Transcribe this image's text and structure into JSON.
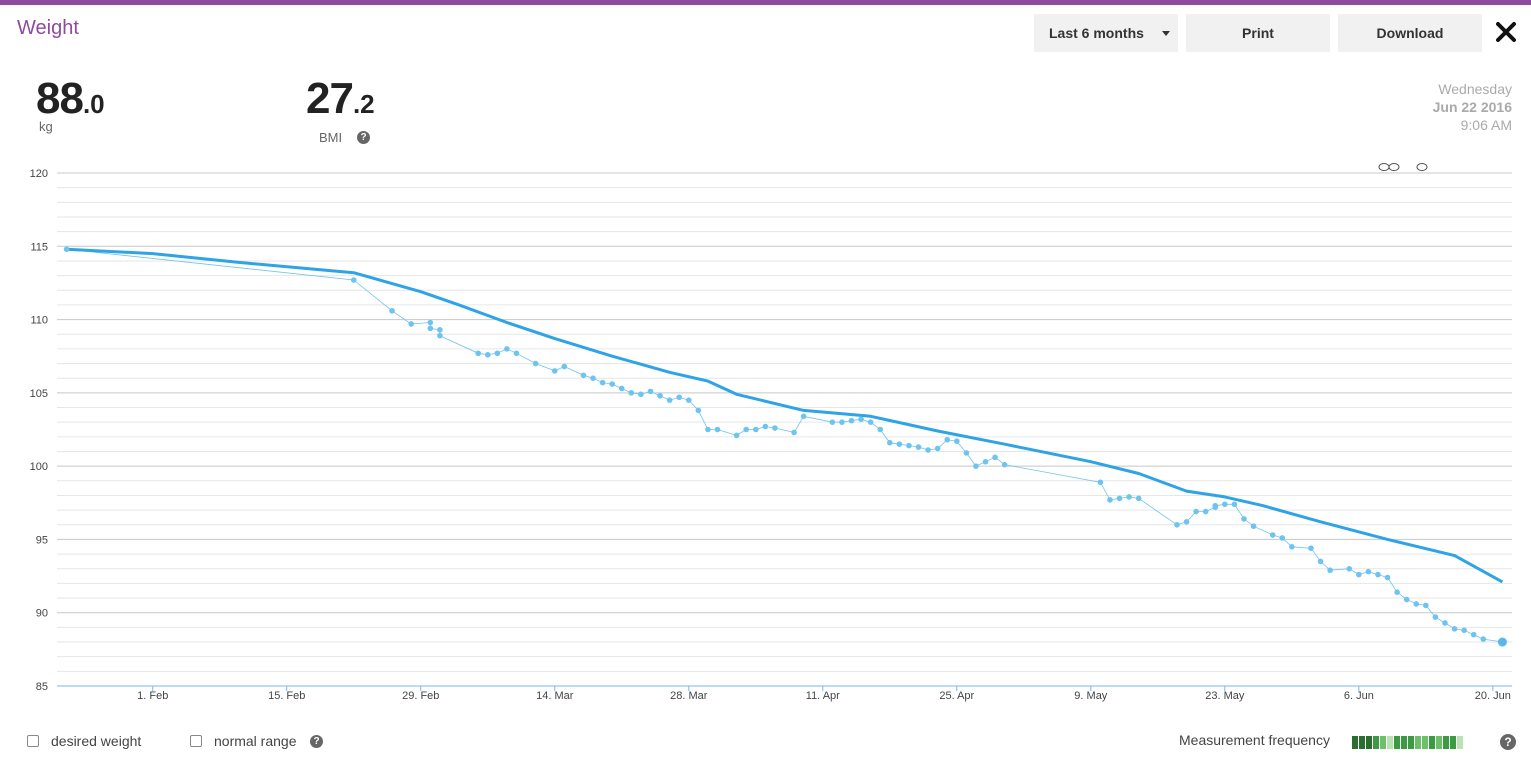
{
  "header": {
    "title": "Weight",
    "range_label": "Last 6 months",
    "print_label": "Print",
    "download_label": "Download"
  },
  "stats": {
    "weight_int": "88",
    "weight_dec": ".0",
    "weight_unit": "kg",
    "bmi_int": "27",
    "bmi_dec": ".2",
    "bmi_label": "BMI"
  },
  "date": {
    "weekday": "Wednesday",
    "date": "Jun 22 2016",
    "time": "9:06 AM"
  },
  "footer": {
    "desired_weight_label": "desired weight",
    "normal_range_label": "normal range",
    "frequency_label": "Measurement frequency",
    "frequency_levels": [
      3,
      3,
      3,
      2,
      1,
      0,
      2,
      2,
      2,
      1,
      1,
      2,
      1,
      2,
      2,
      0
    ]
  },
  "colors": {
    "accent": "#8e4b9e",
    "series": "#2ea3e6",
    "points": "#6ec4ee",
    "freq_shades": [
      "#b9e3b0",
      "#6ebf6a",
      "#3c9a43",
      "#2a6e30"
    ]
  },
  "chart_data": {
    "type": "line",
    "x_type": "date",
    "xlim": [
      "2016-01-22",
      "2016-06-22"
    ],
    "ylim": [
      85,
      120
    ],
    "ytick_values": [
      85,
      90,
      95,
      100,
      105,
      110,
      115,
      120
    ],
    "xticks": [
      {
        "date": "2016-02-01",
        "label": "1. Feb"
      },
      {
        "date": "2016-02-15",
        "label": "15. Feb"
      },
      {
        "date": "2016-02-29",
        "label": "29. Feb"
      },
      {
        "date": "2016-03-14",
        "label": "14. Mar"
      },
      {
        "date": "2016-03-28",
        "label": "28. Mar"
      },
      {
        "date": "2016-04-11",
        "label": "11. Apr"
      },
      {
        "date": "2016-04-25",
        "label": "25. Apr"
      },
      {
        "date": "2016-05-09",
        "label": "9. May"
      },
      {
        "date": "2016-05-23",
        "label": "23. May"
      },
      {
        "date": "2016-06-06",
        "label": "6. Jun"
      },
      {
        "date": "2016-06-20",
        "label": "20. Jun"
      }
    ],
    "series": [
      {
        "values": [
          [
            "2016-01-23",
            114.8
          ],
          [
            "2016-02-22",
            112.7
          ],
          [
            "2016-02-26",
            110.6
          ],
          [
            "2016-02-28",
            109.7
          ],
          [
            "2016-03-01",
            109.8
          ],
          [
            "2016-03-01",
            109.4
          ],
          [
            "2016-03-02",
            109.3
          ],
          [
            "2016-03-02",
            108.9
          ],
          [
            "2016-03-06",
            107.7
          ],
          [
            "2016-03-07",
            107.6
          ],
          [
            "2016-03-08",
            107.7
          ],
          [
            "2016-03-09",
            108.0
          ],
          [
            "2016-03-10",
            107.7
          ],
          [
            "2016-03-12",
            107.0
          ],
          [
            "2016-03-14",
            106.5
          ],
          [
            "2016-03-15",
            106.8
          ],
          [
            "2016-03-17",
            106.2
          ],
          [
            "2016-03-18",
            106.0
          ],
          [
            "2016-03-19",
            105.7
          ],
          [
            "2016-03-20",
            105.6
          ],
          [
            "2016-03-21",
            105.3
          ],
          [
            "2016-03-22",
            105.0
          ],
          [
            "2016-03-23",
            104.9
          ],
          [
            "2016-03-24",
            105.1
          ],
          [
            "2016-03-25",
            104.8
          ],
          [
            "2016-03-26",
            104.5
          ],
          [
            "2016-03-27",
            104.7
          ],
          [
            "2016-03-28",
            104.5
          ],
          [
            "2016-03-29",
            103.8
          ],
          [
            "2016-03-30",
            102.5
          ],
          [
            "2016-03-31",
            102.5
          ],
          [
            "2016-04-02",
            102.1
          ],
          [
            "2016-04-03",
            102.5
          ],
          [
            "2016-04-04",
            102.5
          ],
          [
            "2016-04-05",
            102.7
          ],
          [
            "2016-04-06",
            102.6
          ],
          [
            "2016-04-08",
            102.3
          ],
          [
            "2016-04-09",
            103.4
          ],
          [
            "2016-04-12",
            103.0
          ],
          [
            "2016-04-13",
            103.0
          ],
          [
            "2016-04-14",
            103.1
          ],
          [
            "2016-04-15",
            103.2
          ],
          [
            "2016-04-16",
            103.0
          ],
          [
            "2016-04-17",
            102.5
          ],
          [
            "2016-04-18",
            101.6
          ],
          [
            "2016-04-19",
            101.5
          ],
          [
            "2016-04-20",
            101.4
          ],
          [
            "2016-04-21",
            101.3
          ],
          [
            "2016-04-22",
            101.1
          ],
          [
            "2016-04-23",
            101.2
          ],
          [
            "2016-04-24",
            101.8
          ],
          [
            "2016-04-25",
            101.7
          ],
          [
            "2016-04-26",
            100.9
          ],
          [
            "2016-04-27",
            100.0
          ],
          [
            "2016-04-28",
            100.3
          ],
          [
            "2016-04-29",
            100.6
          ],
          [
            "2016-04-30",
            100.1
          ],
          [
            "2016-05-10",
            98.9
          ],
          [
            "2016-05-11",
            97.7
          ],
          [
            "2016-05-12",
            97.8
          ],
          [
            "2016-05-13",
            97.9
          ],
          [
            "2016-05-14",
            97.8
          ],
          [
            "2016-05-18",
            96.0
          ],
          [
            "2016-05-19",
            96.2
          ],
          [
            "2016-05-20",
            96.9
          ],
          [
            "2016-05-21",
            96.9
          ],
          [
            "2016-05-22",
            97.2
          ],
          [
            "2016-05-22",
            97.3
          ],
          [
            "2016-05-23",
            97.4
          ],
          [
            "2016-05-24",
            97.4
          ],
          [
            "2016-05-25",
            96.4
          ],
          [
            "2016-05-26",
            95.9
          ],
          [
            "2016-05-28",
            95.3
          ],
          [
            "2016-05-29",
            95.1
          ],
          [
            "2016-05-30",
            94.5
          ],
          [
            "2016-06-01",
            94.4
          ],
          [
            "2016-06-02",
            93.5
          ],
          [
            "2016-06-03",
            92.9
          ],
          [
            "2016-06-05",
            93.0
          ],
          [
            "2016-06-06",
            92.6
          ],
          [
            "2016-06-07",
            92.8
          ],
          [
            "2016-06-08",
            92.6
          ],
          [
            "2016-06-09",
            92.4
          ],
          [
            "2016-06-10",
            91.4
          ],
          [
            "2016-06-11",
            90.9
          ],
          [
            "2016-06-12",
            90.6
          ],
          [
            "2016-06-13",
            90.5
          ],
          [
            "2016-06-14",
            89.7
          ],
          [
            "2016-06-15",
            89.3
          ],
          [
            "2016-06-16",
            88.9
          ],
          [
            "2016-06-17",
            88.8
          ],
          [
            "2016-06-18",
            88.5
          ],
          [
            "2016-06-19",
            88.2
          ],
          [
            "2016-06-21",
            88.0
          ]
        ]
      },
      {
        "values": [
          [
            "2016-01-23",
            114.8
          ],
          [
            "2016-02-01",
            114.5
          ],
          [
            "2016-02-10",
            113.9
          ],
          [
            "2016-02-22",
            113.2
          ],
          [
            "2016-02-29",
            111.9
          ],
          [
            "2016-03-04",
            111.0
          ],
          [
            "2016-03-09",
            109.8
          ],
          [
            "2016-03-14",
            108.7
          ],
          [
            "2016-03-20",
            107.5
          ],
          [
            "2016-03-26",
            106.4
          ],
          [
            "2016-03-30",
            105.8
          ],
          [
            "2016-04-02",
            104.9
          ],
          [
            "2016-04-09",
            103.8
          ],
          [
            "2016-04-16",
            103.4
          ],
          [
            "2016-04-23",
            102.4
          ],
          [
            "2016-04-30",
            101.5
          ],
          [
            "2016-05-09",
            100.3
          ],
          [
            "2016-05-14",
            99.5
          ],
          [
            "2016-05-19",
            98.3
          ],
          [
            "2016-05-23",
            97.9
          ],
          [
            "2016-05-27",
            97.3
          ],
          [
            "2016-06-02",
            96.2
          ],
          [
            "2016-06-09",
            95.0
          ],
          [
            "2016-06-16",
            93.9
          ],
          [
            "2016-06-21",
            92.1
          ]
        ]
      }
    ]
  }
}
